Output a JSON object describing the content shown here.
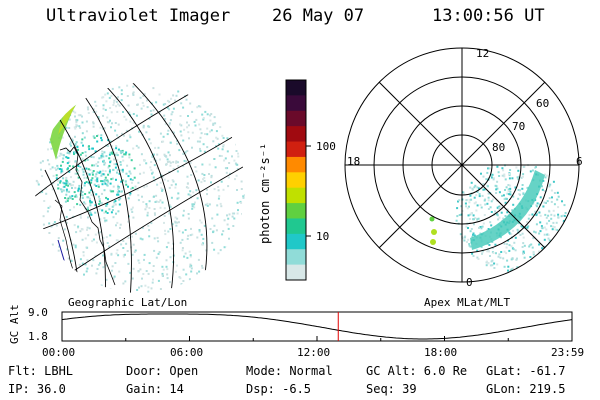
{
  "header": {
    "instrument": "Ultraviolet Imager",
    "date": "26 May 07",
    "time": "13:00:56 UT"
  },
  "colorbar": {
    "unit_label": "photon cm⁻²s⁻¹",
    "ticks": [
      "100",
      "10"
    ],
    "colors_top_to_bottom": [
      "#1a0a2a",
      "#3a0a3a",
      "#6a0a2a",
      "#a00a10",
      "#d02010",
      "#ff8a00",
      "#ffd000",
      "#c0e000",
      "#60d040",
      "#20c890",
      "#20c8c8",
      "#90dcd8",
      "#d8e8e8"
    ]
  },
  "polar_plot": {
    "mlt_labels": [
      "12",
      "18",
      "6",
      "0"
    ],
    "mlat_labels": [
      "60",
      "70",
      "80"
    ],
    "caption": "Apex MLat/MLT"
  },
  "geo_plot": {
    "caption": "Geographic Lat/Lon"
  },
  "altitude_plot": {
    "ylabel": "GC Alt",
    "y_ticks": [
      "9.0",
      "1.8"
    ],
    "x_ticks": [
      "00:00",
      "06:00",
      "12:00",
      "18:00",
      "23:59"
    ],
    "current_hour": 13.0,
    "marker_color": "#e00000"
  },
  "info": {
    "filter": "Flt: LBHL",
    "door": "Door: Open",
    "mode": "Mode: Normal",
    "gc_alt": "GC Alt: 6.0 Re",
    "glat": "GLat: -61.7",
    "ip": "IP: 36.0",
    "gain": "Gain: 14",
    "dsp": "Dsp:   -6.5",
    "seq": "Seq: 39",
    "glon": "GLon: 219.5"
  }
}
